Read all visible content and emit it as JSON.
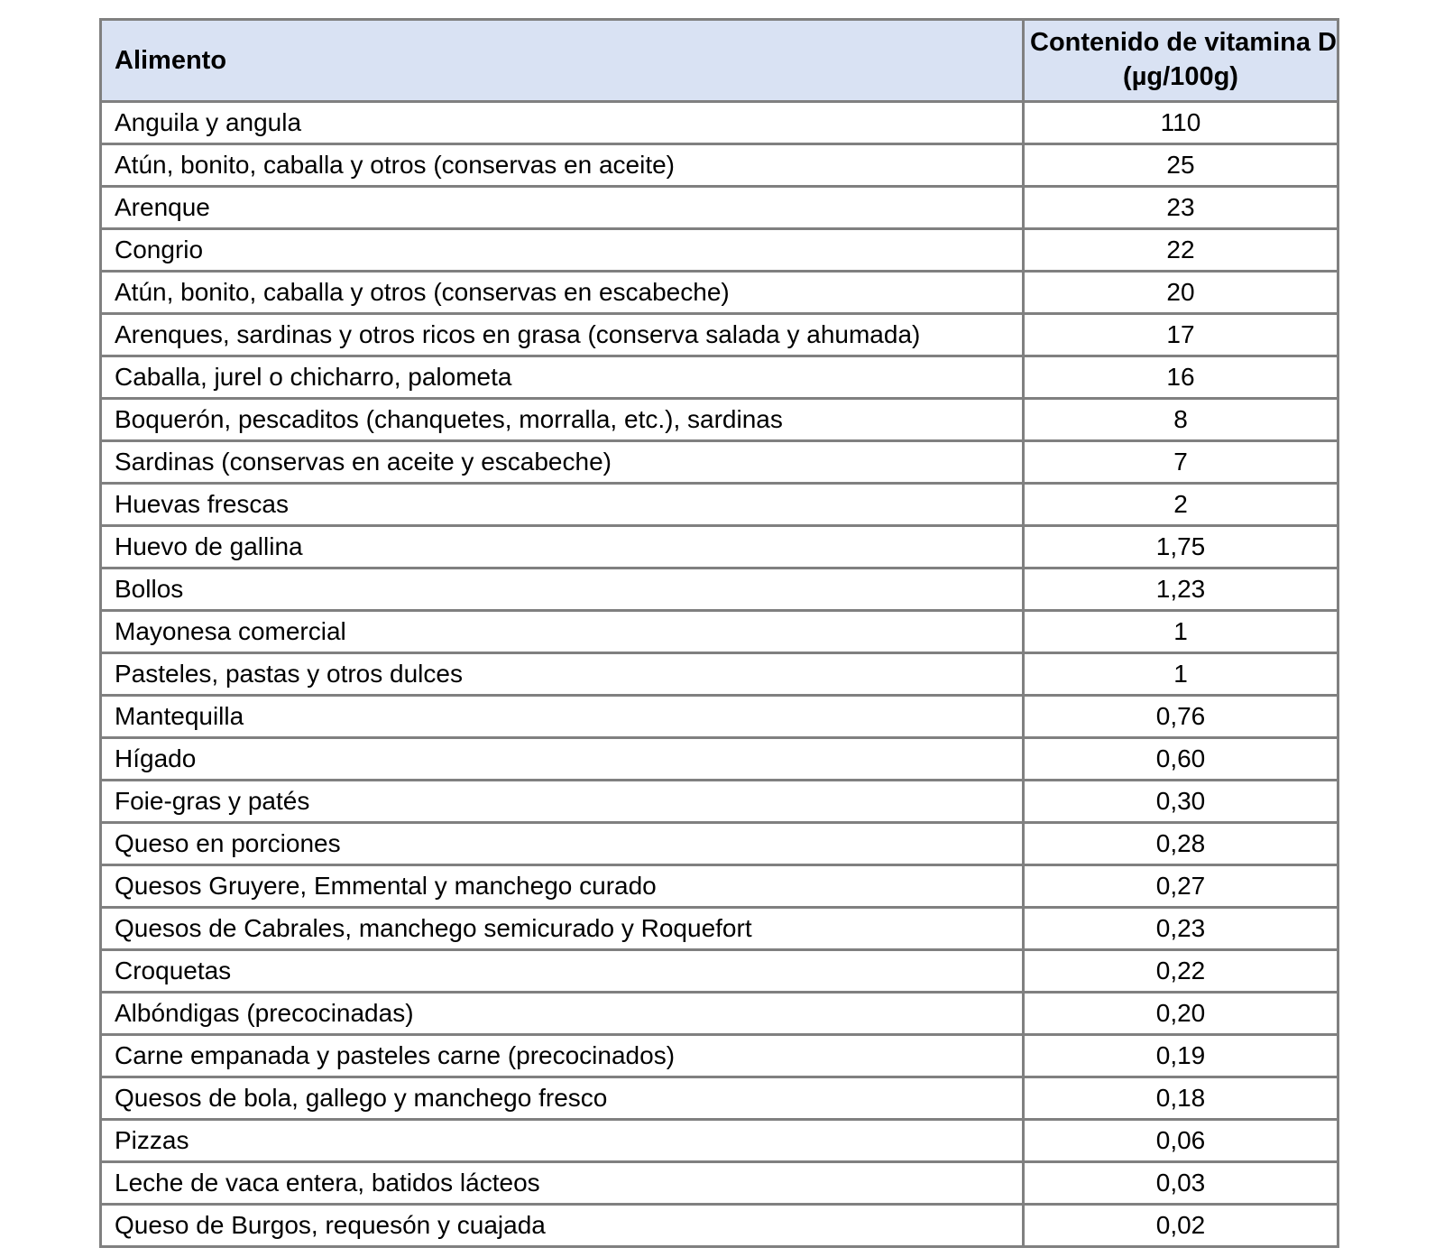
{
  "table": {
    "header": {
      "food_label": "Alimento",
      "value_label_line1": "Contenido de vitamina D",
      "value_label_line2": "(µg/100g)"
    },
    "rows": [
      {
        "food": "Anguila y angula",
        "value": "110"
      },
      {
        "food": "Atún, bonito, caballa y otros (conservas en aceite)",
        "value": "25"
      },
      {
        "food": "Arenque",
        "value": "23"
      },
      {
        "food": "Congrio",
        "value": "22"
      },
      {
        "food": "Atún, bonito, caballa y otros (conservas en escabeche)",
        "value": "20"
      },
      {
        "food": "Arenques, sardinas y otros ricos en grasa (conserva salada y ahumada)",
        "value": "17"
      },
      {
        "food": "Caballa, jurel o chicharro, palometa",
        "value": "16"
      },
      {
        "food": "Boquerón, pescaditos (chanquetes, morralla, etc.), sardinas",
        "value": "8"
      },
      {
        "food": "Sardinas (conservas en aceite y escabeche)",
        "value": "7"
      },
      {
        "food": "Huevas frescas",
        "value": "2"
      },
      {
        "food": "Huevo de gallina",
        "value": "1,75"
      },
      {
        "food": "Bollos",
        "value": "1,23"
      },
      {
        "food": "Mayonesa comercial",
        "value": "1"
      },
      {
        "food": "Pasteles, pastas y otros dulces",
        "value": "1"
      },
      {
        "food": "Mantequilla",
        "value": "0,76"
      },
      {
        "food": "Hígado",
        "value": "0,60"
      },
      {
        "food": "Foie-gras y patés",
        "value": "0,30"
      },
      {
        "food": "Queso en porciones",
        "value": "0,28"
      },
      {
        "food": "Quesos Gruyere, Emmental y manchego curado",
        "value": "0,27"
      },
      {
        "food": "Quesos de Cabrales, manchego semicurado y Roquefort",
        "value": "0,23"
      },
      {
        "food": "Croquetas",
        "value": "0,22"
      },
      {
        "food": "Albóndigas (precocinadas)",
        "value": "0,20"
      },
      {
        "food": "Carne empanada y pasteles carne (precocinados)",
        "value": "0,19"
      },
      {
        "food": "Quesos de bola, gallego y manchego fresco",
        "value": "0,18"
      },
      {
        "food": "Pizzas",
        "value": "0,06"
      },
      {
        "food": "Leche de vaca entera, batidos lácteos",
        "value": "0,03"
      },
      {
        "food": "Queso de Burgos, requesón y cuajada",
        "value": "0,02"
      }
    ]
  },
  "colors": {
    "header_background": "#d9e2f3",
    "grid_border": "#808080",
    "text": "#000000",
    "page_background": "#ffffff"
  }
}
